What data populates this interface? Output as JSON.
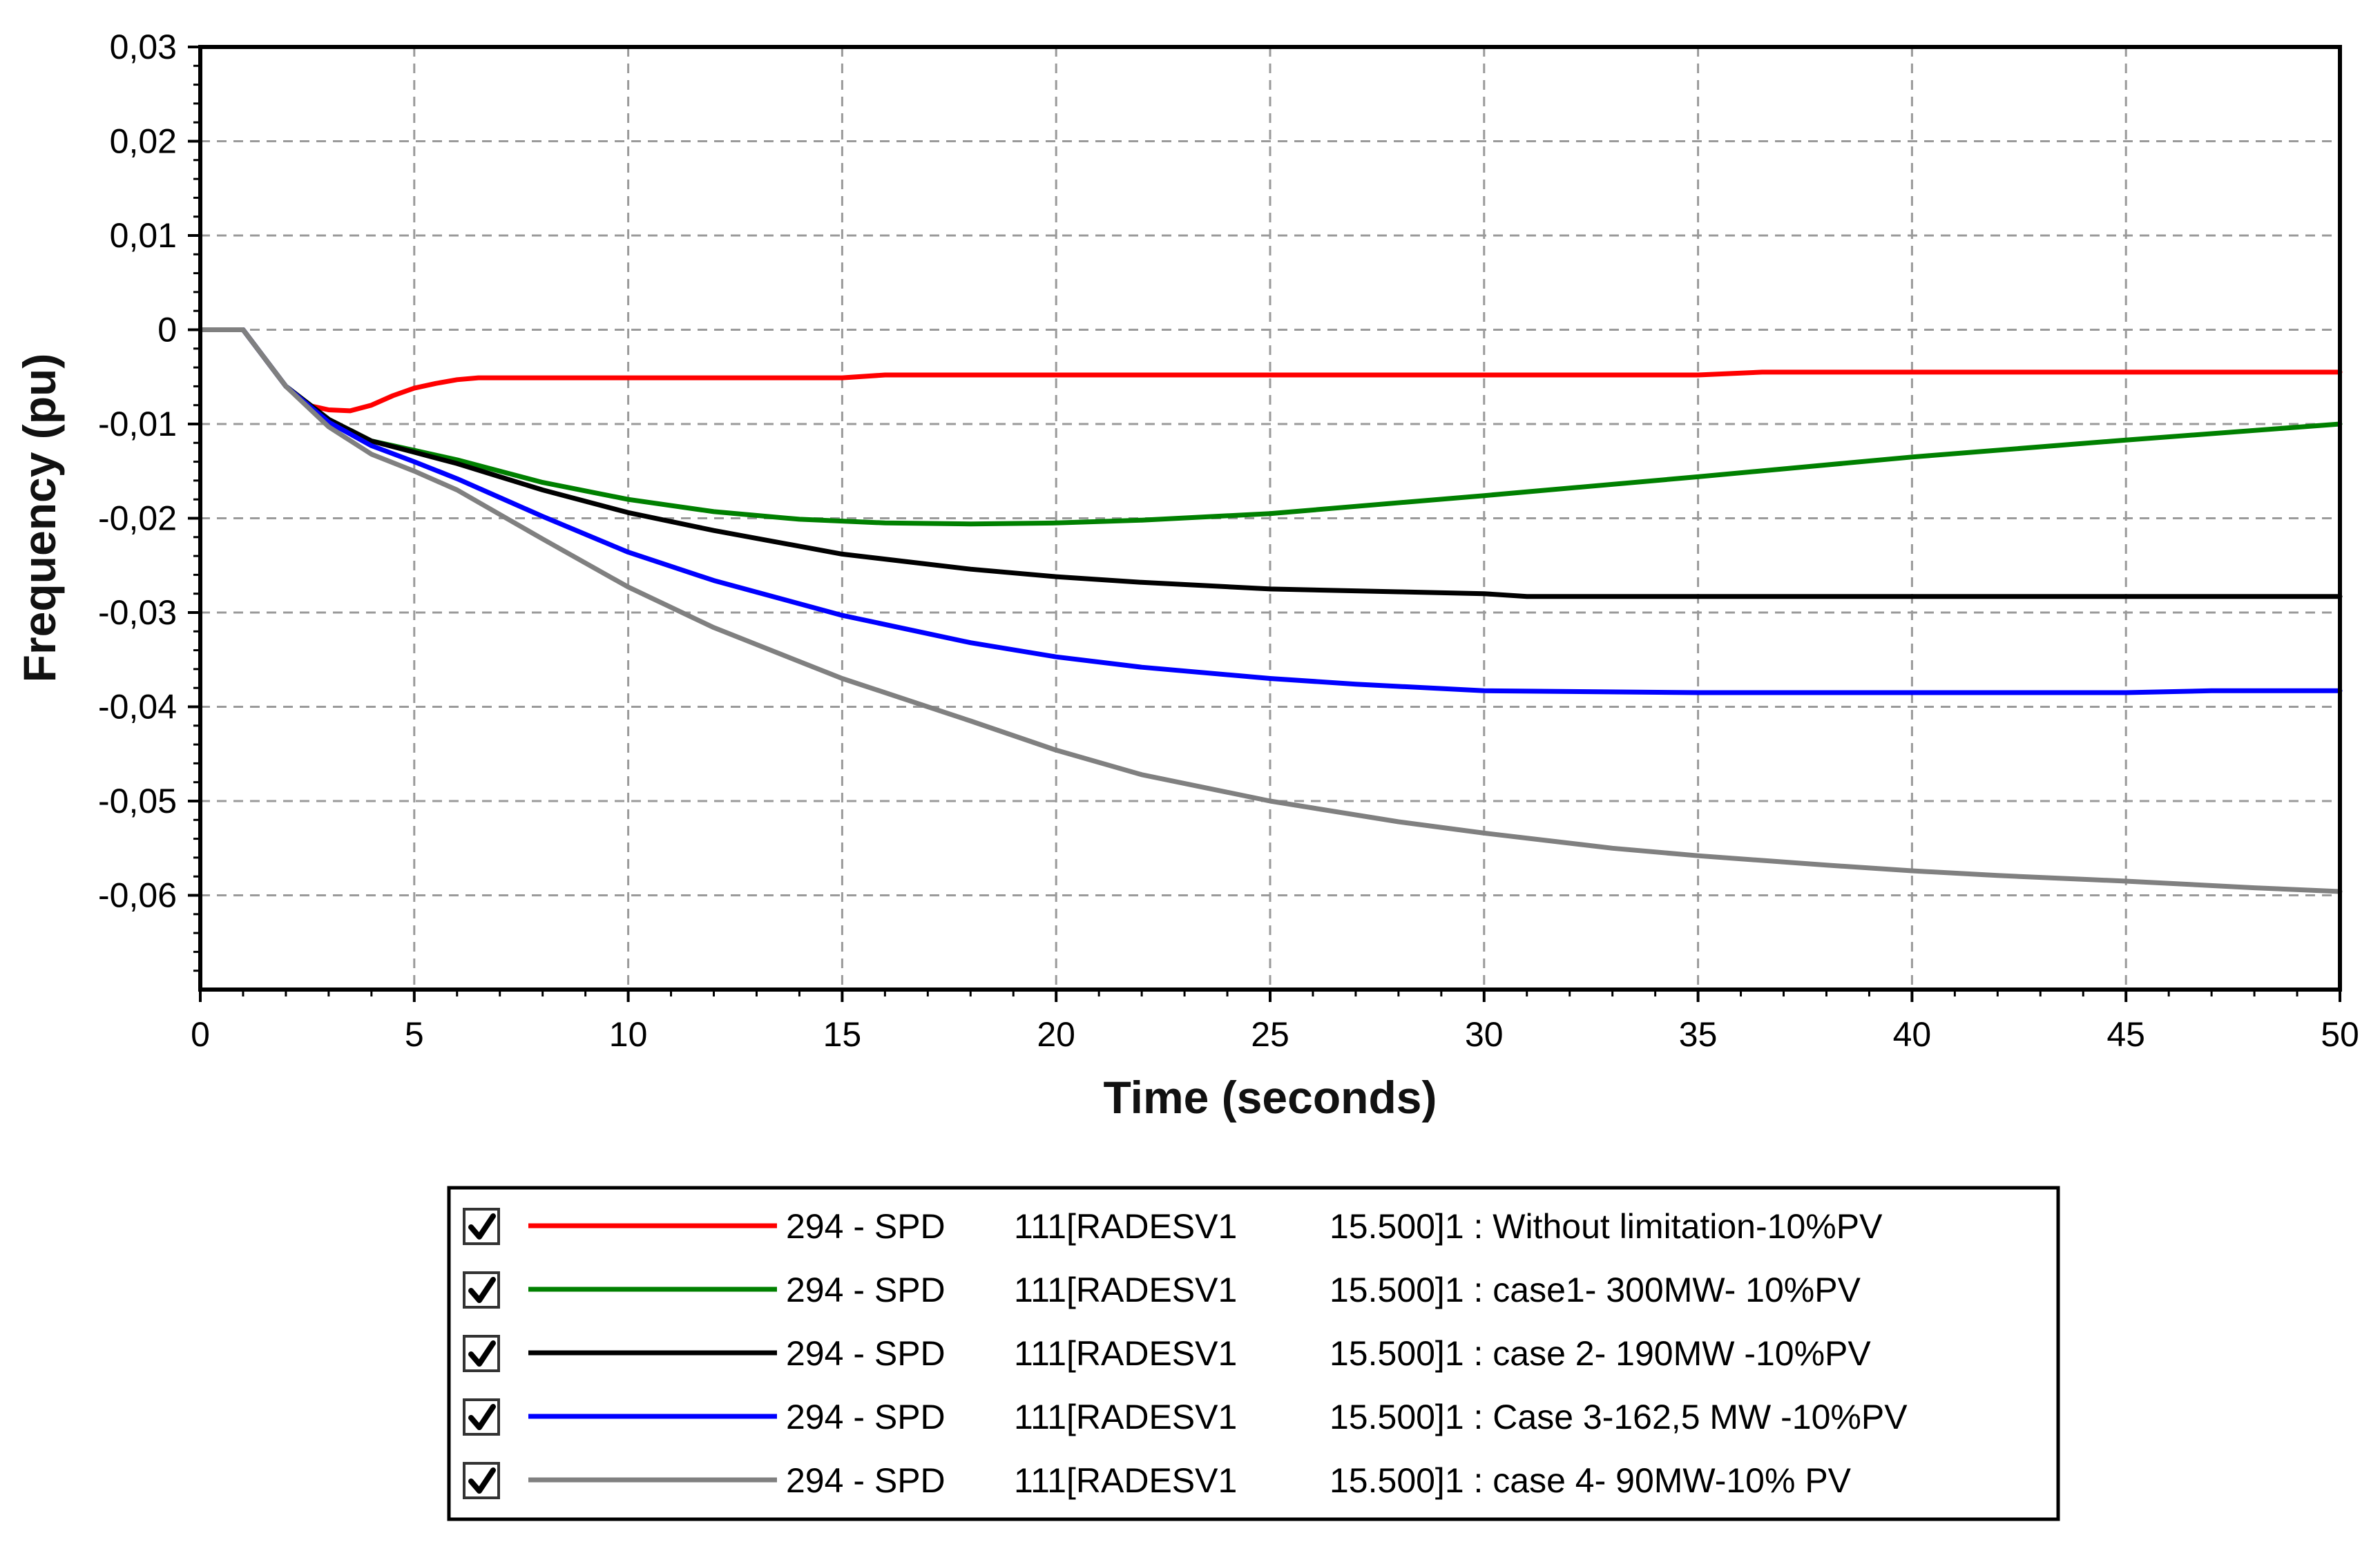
{
  "chart_data": {
    "type": "line",
    "title": "",
    "xlabel": "Time (seconds)",
    "ylabel": "Frequency (pu)",
    "xlim": [
      0,
      50
    ],
    "ylim": [
      -0.07,
      0.03
    ],
    "x_ticks": [
      0,
      5,
      10,
      15,
      20,
      25,
      30,
      35,
      40,
      45,
      50
    ],
    "x_tick_labels": [
      "0",
      "5",
      "10",
      "15",
      "20",
      "25",
      "30",
      "35",
      "40",
      "45",
      "50"
    ],
    "y_ticks": [
      0.03,
      0.02,
      0.01,
      0,
      -0.01,
      -0.02,
      -0.03,
      -0.04,
      -0.05,
      -0.06
    ],
    "y_tick_labels": [
      "0,03",
      "0,02",
      "0,01",
      "0",
      "-0,01",
      "-0,02",
      "-0,03",
      "-0,04",
      "-0,05",
      "-0,06"
    ],
    "grid": true,
    "legend_position": "bottom",
    "series": [
      {
        "name": "Without limitation-10%PV",
        "color": "#ff0000",
        "checked": true,
        "legend": {
          "col1": "294 - SPD",
          "col2": "111[RADESV1",
          "col3": "15.500]1 : Without limitation-10%PV"
        },
        "x": [
          0,
          1,
          1.5,
          2,
          2.5,
          3,
          3.5,
          4,
          4.5,
          5,
          5.5,
          6,
          6.5,
          8,
          10,
          12,
          15,
          16,
          20,
          25,
          30,
          35,
          36.5,
          40,
          45,
          50
        ],
        "y": [
          0,
          0,
          -0.003,
          -0.006,
          -0.008,
          -0.0085,
          -0.0086,
          -0.008,
          -0.007,
          -0.0062,
          -0.0057,
          -0.0053,
          -0.0051,
          -0.0051,
          -0.0051,
          -0.0051,
          -0.0051,
          -0.0048,
          -0.0048,
          -0.0048,
          -0.0048,
          -0.0048,
          -0.0045,
          -0.0045,
          -0.0045,
          -0.0045
        ]
      },
      {
        "name": "case1- 300MW- 10%PV",
        "color": "#008000",
        "checked": true,
        "legend": {
          "col1": "294 - SPD",
          "col2": "111[RADESV1",
          "col3": "15.500]1 : case1- 300MW- 10%PV"
        },
        "x": [
          0,
          1,
          1.5,
          2,
          3,
          4,
          5,
          6,
          7,
          8,
          10,
          12,
          14,
          16,
          18,
          20,
          22,
          25,
          30,
          35,
          40,
          45,
          50
        ],
        "y": [
          0,
          0,
          -0.003,
          -0.006,
          -0.0095,
          -0.0118,
          -0.0128,
          -0.0138,
          -0.015,
          -0.0162,
          -0.018,
          -0.0193,
          -0.0201,
          -0.0205,
          -0.0206,
          -0.0205,
          -0.0202,
          -0.0195,
          -0.0176,
          -0.0156,
          -0.0135,
          -0.0117,
          -0.01
        ]
      },
      {
        "name": "case 2- 190MW -10%PV",
        "color": "#000000",
        "checked": true,
        "legend": {
          "col1": "294 - SPD",
          "col2": "111[RADESV1",
          "col3": "15.500]1 : case 2- 190MW -10%PV"
        },
        "x": [
          0,
          1,
          1.5,
          2,
          3,
          4,
          5,
          6,
          7,
          8,
          10,
          12,
          15,
          18,
          20,
          22,
          25,
          28,
          30,
          31,
          35,
          40,
          45,
          50
        ],
        "y": [
          0,
          0,
          -0.003,
          -0.006,
          -0.0095,
          -0.0118,
          -0.013,
          -0.0142,
          -0.0156,
          -0.017,
          -0.0194,
          -0.0213,
          -0.0238,
          -0.0254,
          -0.0262,
          -0.0268,
          -0.0275,
          -0.0278,
          -0.028,
          -0.0283,
          -0.0283,
          -0.0283,
          -0.0283,
          -0.0283
        ]
      },
      {
        "name": "Case 3-162,5 MW -10%PV",
        "color": "#0000ff",
        "checked": true,
        "legend": {
          "col1": "294 - SPD",
          "col2": "111[RADESV1",
          "col3": "15.500]1 : Case 3-162,5 MW -10%PV"
        },
        "x": [
          0,
          1,
          1.5,
          2,
          3,
          4,
          5,
          6,
          7,
          8,
          10,
          12,
          15,
          18,
          20,
          22,
          25,
          27,
          30,
          35,
          40,
          45,
          47,
          50
        ],
        "y": [
          0,
          0,
          -0.003,
          -0.006,
          -0.0098,
          -0.0123,
          -0.014,
          -0.0158,
          -0.0178,
          -0.0198,
          -0.0236,
          -0.0266,
          -0.0303,
          -0.0332,
          -0.0347,
          -0.0358,
          -0.037,
          -0.0376,
          -0.0383,
          -0.0385,
          -0.0385,
          -0.0385,
          -0.0383,
          -0.0383
        ]
      },
      {
        "name": "case 4- 90MW-10% PV",
        "color": "#808080",
        "checked": true,
        "legend": {
          "col1": "294 - SPD",
          "col2": "111[RADESV1",
          "col3": "15.500]1 : case 4- 90MW-10% PV"
        },
        "x": [
          0,
          1,
          1.5,
          2,
          3,
          4,
          5,
          6,
          7,
          8,
          10,
          12,
          15,
          18,
          20,
          22,
          25,
          28,
          30,
          33,
          35,
          38,
          40,
          42,
          45,
          48,
          50
        ],
        "y": [
          0,
          0,
          -0.003,
          -0.006,
          -0.0103,
          -0.0132,
          -0.015,
          -0.017,
          -0.0196,
          -0.0222,
          -0.0273,
          -0.0316,
          -0.037,
          -0.0415,
          -0.0446,
          -0.0472,
          -0.05,
          -0.0522,
          -0.0534,
          -0.055,
          -0.0558,
          -0.0568,
          -0.0574,
          -0.0579,
          -0.0585,
          -0.0592,
          -0.0596
        ]
      }
    ]
  }
}
